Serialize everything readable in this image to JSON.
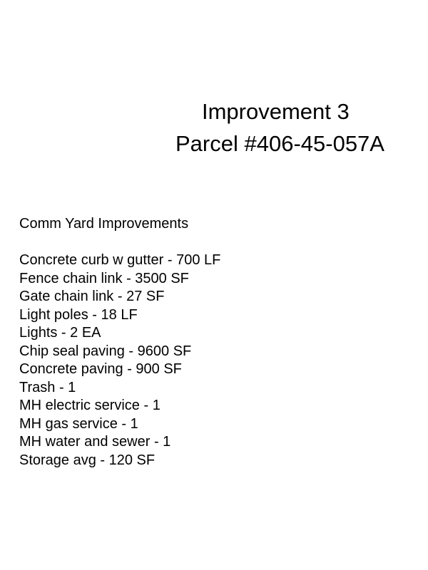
{
  "header": {
    "title": "Improvement 3",
    "parcel": "Parcel #406-45-057A"
  },
  "section": {
    "heading": "Comm Yard Improvements",
    "items": [
      "Concrete curb w gutter - 700 LF",
      "Fence chain link - 3500 SF",
      "Gate chain link - 27 SF",
      "Light poles - 18 LF",
      "Lights - 2 EA",
      "Chip seal paving - 9600 SF",
      "Concrete paving - 900 SF",
      "Trash - 1",
      "MH electric service - 1",
      "MH gas service - 1",
      "MH water and sewer - 1",
      "Storage avg - 120 SF"
    ]
  }
}
